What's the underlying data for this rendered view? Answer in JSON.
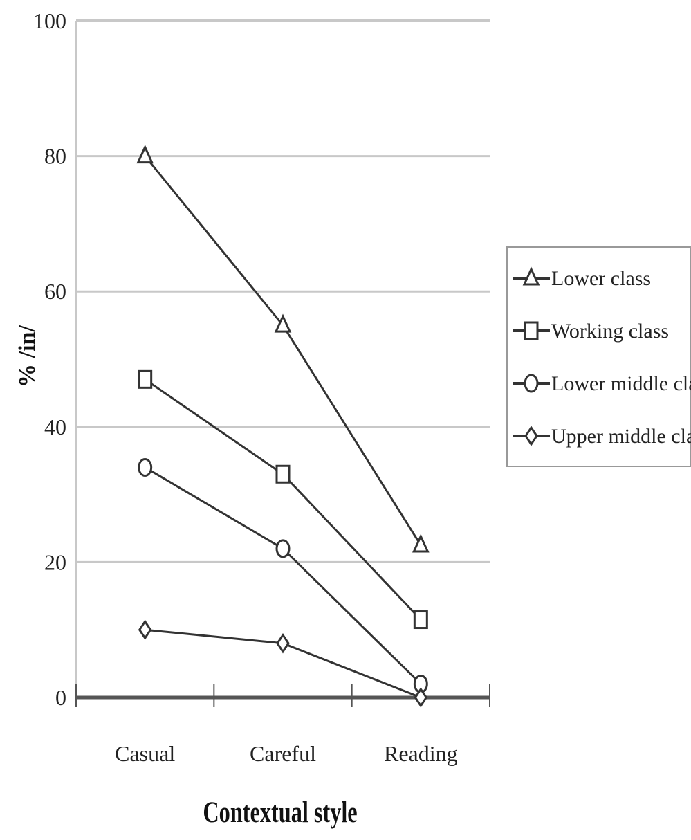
{
  "chart_data": {
    "type": "line",
    "categories": [
      "Casual",
      "Careful",
      "Reading"
    ],
    "series": [
      {
        "name": "Lower class",
        "marker": "triangle",
        "values": [
          80,
          55,
          22.5
        ]
      },
      {
        "name": "Working class",
        "marker": "square",
        "values": [
          47,
          33,
          11.5
        ]
      },
      {
        "name": "Lower middle class",
        "marker": "circle",
        "values": [
          34,
          22,
          2
        ]
      },
      {
        "name": "Upper middle class",
        "marker": "diamond",
        "values": [
          10,
          8,
          0
        ]
      }
    ],
    "xlabel": "Contextual style",
    "ylabel": "% /in/",
    "ylim": [
      0,
      100
    ],
    "yticks": [
      0,
      20,
      40,
      60,
      80,
      100
    ],
    "grid": true,
    "legend": "right",
    "colors": {
      "line": "#333333",
      "grid": "#c8c8c8",
      "axis": "#555555"
    }
  }
}
